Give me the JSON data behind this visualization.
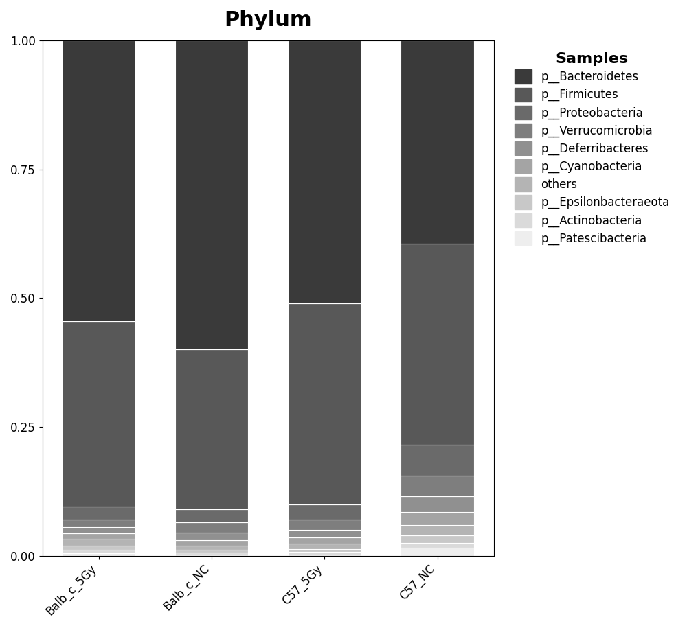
{
  "title": "Phylum",
  "categories": [
    "Balb_c_5Gy",
    "Balb_c_NC",
    "C57_5Gy",
    "C57_NC"
  ],
  "legend_title": "Samples",
  "labels": [
    "p__Bacteroidetes",
    "p__Firmicutes",
    "p__Proteobacteria",
    "p__Verrucomicrobia",
    "p__Deferribacteres",
    "p__Cyanobacteria",
    "others",
    "p__Epsilonbacteraeota",
    "p__Actinobacteria",
    "p__Patescibacteria"
  ],
  "colors": [
    "#3a3a3a",
    "#585858",
    "#6a6a6a",
    "#7e7e7e",
    "#909090",
    "#a4a4a4",
    "#b4b4b4",
    "#c8c8c8",
    "#dadada",
    "#eeeeee"
  ],
  "values": {
    "Balb_c_5Gy": [
      0.545,
      0.36,
      0.025,
      0.015,
      0.012,
      0.01,
      0.013,
      0.008,
      0.007,
      0.005
    ],
    "Balb_c_NC": [
      0.6,
      0.31,
      0.025,
      0.02,
      0.015,
      0.01,
      0.008,
      0.006,
      0.004,
      0.002
    ],
    "C57_5Gy": [
      0.51,
      0.39,
      0.03,
      0.02,
      0.015,
      0.012,
      0.01,
      0.006,
      0.005,
      0.002
    ],
    "C57_NC": [
      0.395,
      0.39,
      0.06,
      0.04,
      0.03,
      0.025,
      0.02,
      0.015,
      0.01,
      0.015
    ]
  },
  "ylim": [
    0.0,
    1.0
  ],
  "yticks": [
    0.0,
    0.25,
    0.5,
    0.75,
    1.0
  ],
  "bar_width": 0.65,
  "figsize": [
    10.0,
    9.15
  ],
  "title_fontsize": 22,
  "legend_title_fontsize": 14,
  "legend_fontsize": 12,
  "tick_fontsize": 12,
  "bg_color": "#ffffff"
}
